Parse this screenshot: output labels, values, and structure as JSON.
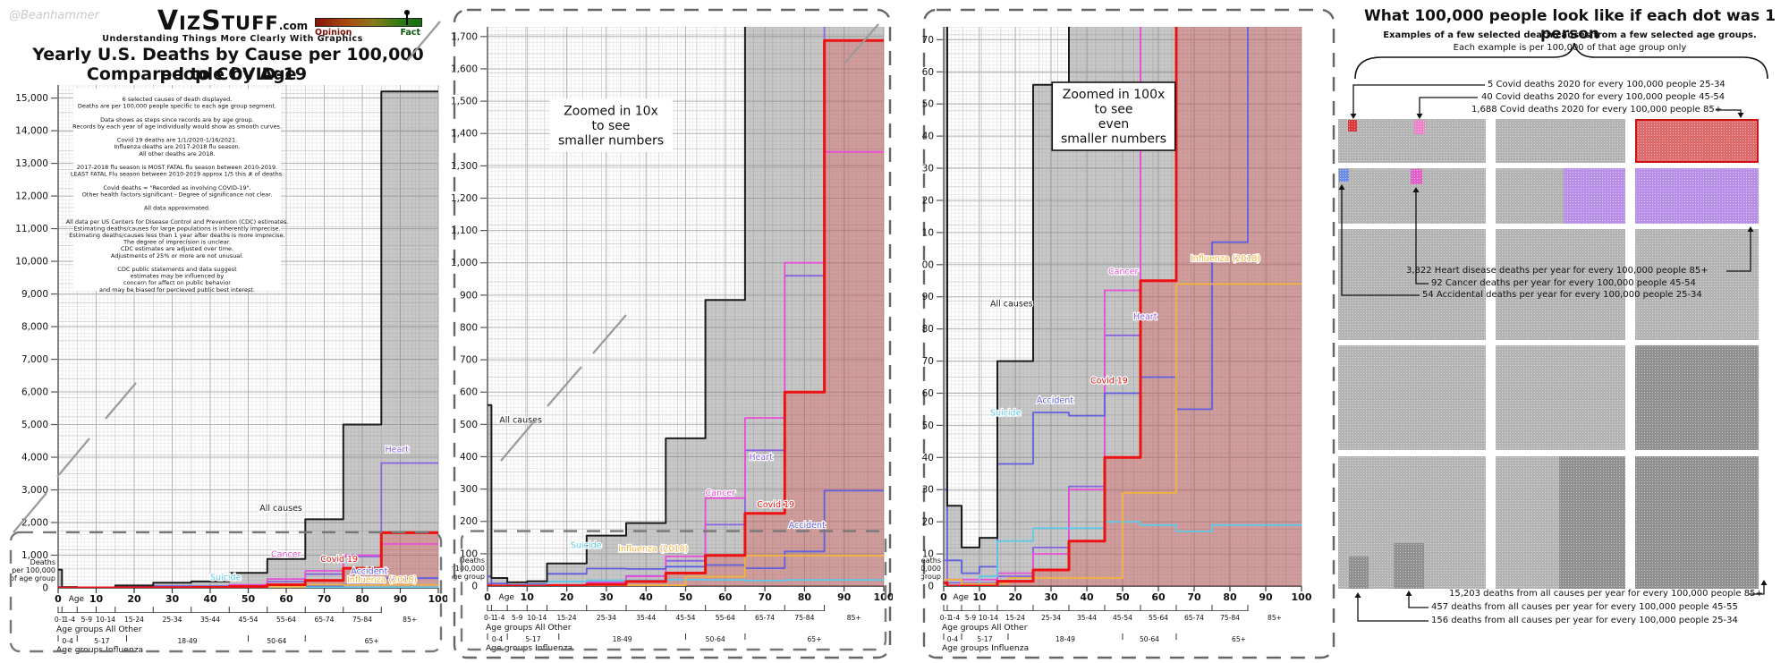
{
  "signature": "@Beanhammer",
  "header": {
    "brand": {
      "v": "V",
      "iz": "IZ",
      "s": "S",
      "tuff": "TUFF",
      "com": ".com"
    },
    "tagline": "Understanding Things More Clearly With Graphics",
    "title_line1": "Yearly U.S. Deaths by Cause per 100,000 people by Age",
    "title_line2": "Compared to COVID-19",
    "meter": {
      "left_label": "Opinion",
      "right_label": "Fact",
      "needle_position": 0.87,
      "left_color": "#7a1008",
      "right_color": "#0a5a0a"
    }
  },
  "notes_lines": [
    "6 selected causes of death displayed.",
    "Deaths are per 100,000 people specific to each age group segment.",
    "",
    "Data shows as steps since records are by age group.",
    "Records by each year of age individually would show as smooth curves.",
    "",
    "Covid 19 deaths are 1/1/2020-1/16/2021.",
    "Influenza deaths are 2017-2018 flu season.",
    "All other deaths are 2018.",
    "",
    "2017-2018 flu season is MOST FATAL flu season between 2010-2019.",
    "LEAST FATAL Flu season between 2010-2019 approx 1/5 this # of deaths.",
    "",
    "Covid deaths = \"Recorded as involving COVID-19\".",
    "Other health factors significant - Degree of significance not clear.",
    "",
    "All data approximated.",
    "",
    "All data per US Centers for Disease Control and Prevention (CDC) estimates.",
    "Estimating deaths/causes for large populations is inherently imprecise.",
    "Estimating deaths/causes less than 1 year after deaths is more imprecise.",
    "The degree of imprecision is unclear.",
    "CDC estimates are adjusted over time.",
    "Adjustments of 25% or more are not unusual.",
    "",
    "CDC public statements and data suggest",
    "estimates may be influenced by",
    "concern for affect on public behavior",
    "and may be biased for percieved public best interest."
  ],
  "chart_data": {
    "type": "line",
    "subtype": "step",
    "x_axis": {
      "word": "Age",
      "ticks": [
        0,
        10,
        20,
        30,
        40,
        50,
        60,
        70,
        80,
        90,
        100
      ],
      "range": [
        0,
        100
      ]
    },
    "y_axis_caption": [
      "Deaths",
      "per 100,000",
      "of age group"
    ],
    "age_groups_all_other": {
      "row_label": "Age groups All Other",
      "boundaries": [
        0,
        1,
        5,
        10,
        15,
        25,
        35,
        45,
        55,
        65,
        75,
        85,
        100
      ],
      "labels": [
        "0-1",
        "1-4",
        "5-9",
        "10-14",
        "15-24",
        "25-34",
        "35-44",
        "45-54",
        "55-64",
        "65-74",
        "75-84",
        "85+"
      ]
    },
    "age_groups_influenza": {
      "row_label": "Age groups Influenza",
      "boundaries": [
        0,
        5,
        18,
        50,
        65,
        100
      ],
      "labels": [
        "0-4",
        "5-17",
        "18-49",
        "50-64",
        "65+"
      ]
    },
    "series": [
      {
        "id": "all_causes",
        "label": "All causes",
        "color": "#1c1c1c",
        "width": 2,
        "fill": "rgba(125,125,125,0.42)",
        "groups": "other",
        "values": [
          560,
          25,
          12,
          15,
          70,
          156,
          195,
          457,
          885,
          2100,
          5000,
          15203
        ]
      },
      {
        "id": "heart",
        "label": "Heart",
        "color": "#8a63e0",
        "width": 1.8,
        "groups": "other",
        "values": [
          8,
          1,
          1,
          1,
          3,
          12,
          31,
          78,
          190,
          420,
          960,
          3822
        ]
      },
      {
        "id": "cancer",
        "label": "Cancer",
        "color": "#e84fd7",
        "width": 1.8,
        "groups": "other",
        "values": [
          2,
          2,
          2,
          2,
          4,
          10,
          30,
          92,
          272,
          520,
          1000,
          1343
        ]
      },
      {
        "id": "accident",
        "label": "Accident",
        "color": "#5f5fe0",
        "width": 1.8,
        "groups": "other",
        "values": [
          30,
          8,
          4,
          6,
          38,
          54,
          53,
          60,
          65,
          55,
          107,
          295
        ]
      },
      {
        "id": "suicide",
        "label": "Suicide",
        "color": "#5fc8e8",
        "width": 1.8,
        "groups": "other",
        "values": [
          0,
          0,
          0,
          3,
          14,
          18,
          18,
          20,
          19,
          17,
          19,
          19
        ]
      },
      {
        "id": "influenza",
        "label": "Influenza (2018)",
        "color": "#f2b23e",
        "width": 1.8,
        "groups": "flu",
        "values": [
          2,
          0.7,
          2.5,
          29,
          94
        ]
      },
      {
        "id": "covid",
        "label": "Covid 19",
        "color": "#ee1111",
        "width": 3,
        "fill": "rgba(225,70,70,0.33)",
        "groups": "other",
        "values": [
          1,
          0,
          0,
          0,
          1.5,
          5,
          14,
          40,
          95,
          225,
          600,
          1688
        ]
      }
    ],
    "views": [
      {
        "id": "main",
        "ylim_top": 15400,
        "ytick_step": 1000,
        "ytick_max": 15000,
        "dashed_level": 1700,
        "zoom_note_lines": null,
        "label_positions": {
          "all_causes": [
            53,
            2350
          ],
          "heart": [
            86,
            4150
          ],
          "cancer": [
            56,
            950
          ],
          "covid": [
            69,
            800
          ],
          "accident": [
            77,
            430
          ],
          "suicide": [
            40,
            230
          ],
          "influenza": [
            76,
            170
          ]
        }
      },
      {
        "id": "zoom10",
        "ylim_top": 1730,
        "ytick_step": 100,
        "ytick_max": 1700,
        "dashed_level": 170,
        "zoom_note_lines": [
          "Zoomed in 10x",
          "to see",
          "smaller numbers"
        ],
        "label_positions": {
          "all_causes": [
            3,
            505
          ],
          "heart": [
            66,
            390
          ],
          "cancer": [
            55,
            280
          ],
          "covid": [
            68,
            243
          ],
          "accident": [
            76,
            180
          ],
          "suicide": [
            21,
            118
          ],
          "influenza": [
            33,
            106
          ]
        }
      },
      {
        "id": "zoom100",
        "ylim_top": 174,
        "ytick_step": 10,
        "ytick_max": 170,
        "dashed_level": null,
        "zoom_note_lines": [
          "Zoomed in 100x",
          "to see",
          "even",
          "smaller numbers"
        ],
        "label_positions": {
          "all_causes": [
            13,
            87
          ],
          "cancer": [
            46,
            97
          ],
          "heart": [
            53,
            83
          ],
          "covid": [
            41,
            63
          ],
          "accident": [
            26,
            57
          ],
          "suicide": [
            13,
            53
          ],
          "influenza": [
            69,
            101
          ]
        }
      }
    ]
  },
  "dot_panel": {
    "title": "What 100,000 people look like if each dot was 1 person",
    "subtitle1": "Examples of a few selected death causes from a few selected age groups.",
    "subtitle2": "Each example is per 100,000 of that age group only",
    "callouts": {
      "covid_25_34": "5 Covid deaths 2020 for every 100,000 people 25-34",
      "covid_45_54": "40 Covid deaths 2020 for every 100,000 people 45-54",
      "covid_85": "1,688 Covid deaths 2020 for every 100,000 people 85+",
      "heart_85": "3,822 Heart disease deaths per year for every 100,000 people 85+",
      "cancer_45_54": "92 Cancer deaths per year for every 100,000 people 45-54",
      "accident_25_34": "54 Accidental deaths per year for every 100,000 people 25-34",
      "all_85": "15,203 deaths from all causes per year for every 100,000 people 85+",
      "all_45_55": "457 deaths from all causes per year for every 100,000 people 45-55",
      "all_25_34": "156 deaths from all causes per year for every 100,000 people 25-34"
    },
    "colors": {
      "base": "#b3b3b3",
      "dark": "#8f8f8f",
      "covid_red": "#dd6b6b",
      "covid_border": "#cc1111",
      "heart_purple": "#b88fe6",
      "marker_red": "#e03838",
      "marker_pink": "#ee82c8",
      "marker_blue": "#6d8ce8",
      "marker_magenta": "#e060c8"
    }
  }
}
